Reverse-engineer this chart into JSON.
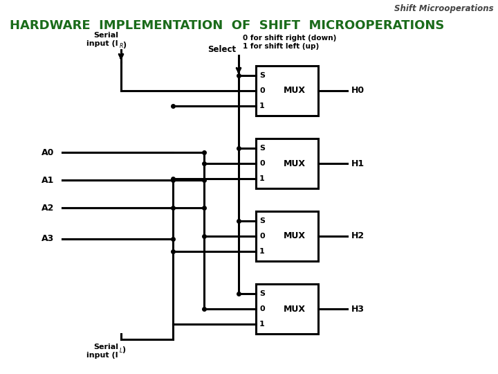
{
  "title": "Shift Microoperations",
  "main_title": "HARDWARE  IMPLEMENTATION  OF  SHIFT  MICROOPERATIONS",
  "bg_color": "#ffffff",
  "title_color": "#1a6b1a",
  "watermark_color": "#444444",
  "black": "#000000",
  "mux_labels": [
    "H0",
    "H1",
    "H2",
    "H3"
  ],
  "input_labels": [
    "A0",
    "A1",
    "A2",
    "A3"
  ],
  "serial_r_label": "Serial\ninput (I",
  "serial_l_label": "Serial\ninput (I",
  "select_label": "Select",
  "note_label": "0 for shift right (down)\n1 for shift left (up)"
}
